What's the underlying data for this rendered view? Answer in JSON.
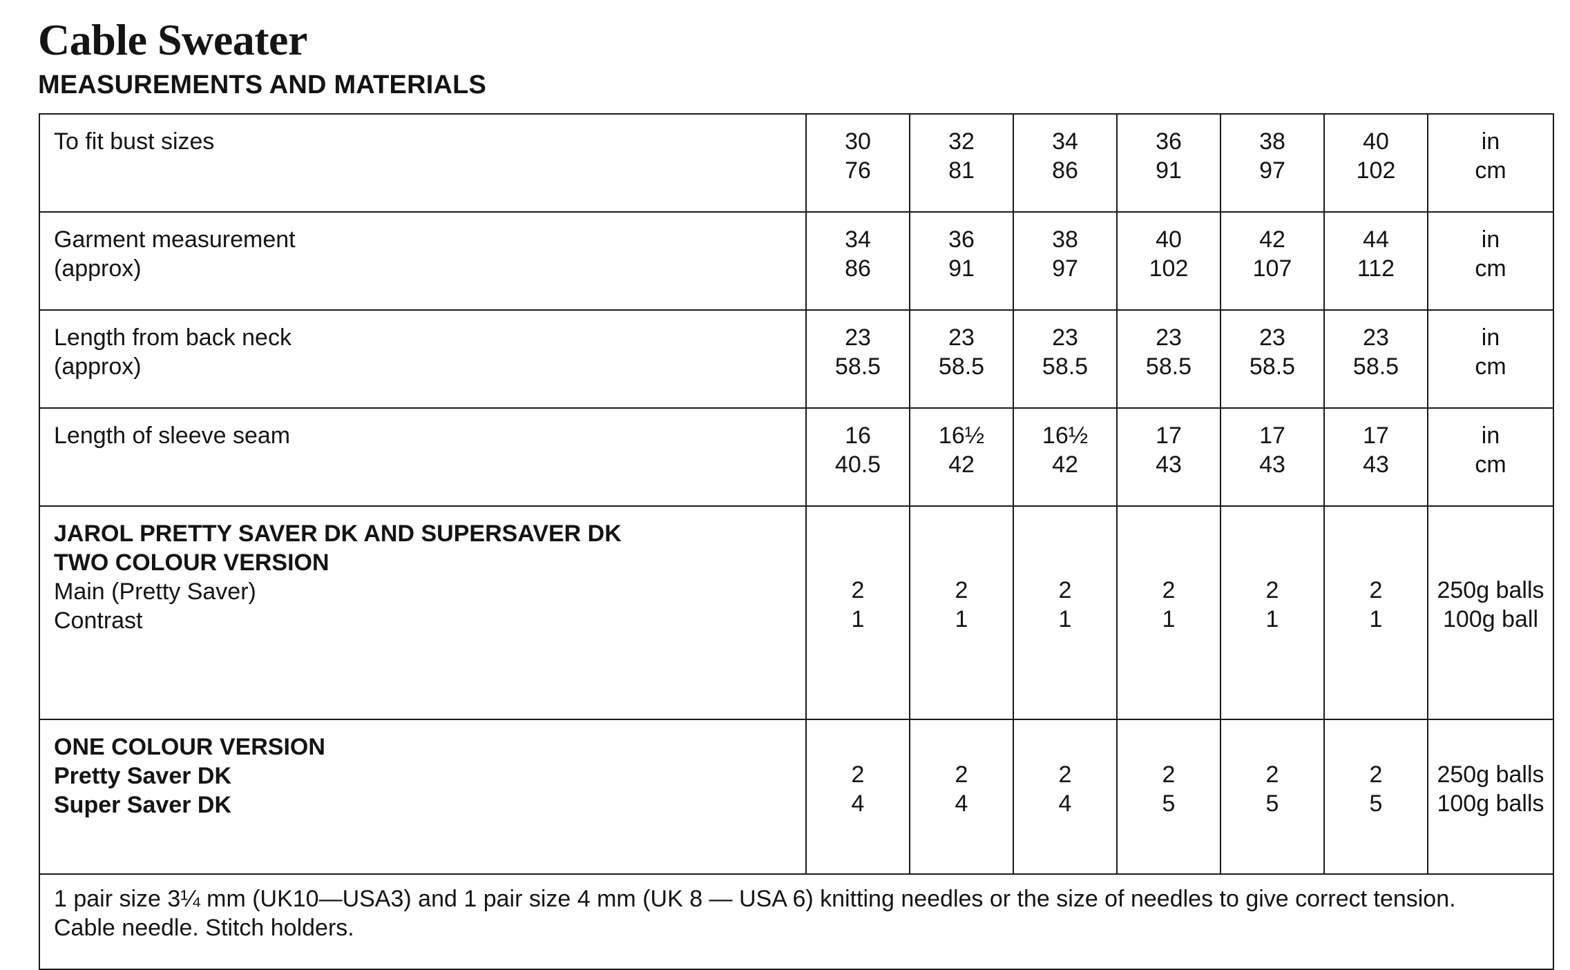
{
  "title": "Cable Sweater",
  "subtitle": "MEASUREMENTS AND MATERIALS",
  "rows": {
    "bust": {
      "label": "To fit bust sizes",
      "values": [
        [
          "30",
          "76"
        ],
        [
          "32",
          "81"
        ],
        [
          "34",
          "86"
        ],
        [
          "36",
          "91"
        ],
        [
          "38",
          "97"
        ],
        [
          "40",
          "102"
        ]
      ],
      "units": [
        "in",
        "cm"
      ]
    },
    "garment": {
      "label": [
        "Garment measurement",
        "(approx)"
      ],
      "values": [
        [
          "34",
          "86"
        ],
        [
          "36",
          "91"
        ],
        [
          "38",
          "97"
        ],
        [
          "40",
          "102"
        ],
        [
          "42",
          "107"
        ],
        [
          "44",
          "112"
        ]
      ],
      "units": [
        "in",
        "cm"
      ]
    },
    "length": {
      "label": [
        "Length from back neck",
        "(approx)"
      ],
      "values": [
        [
          "23",
          "58.5"
        ],
        [
          "23",
          "58.5"
        ],
        [
          "23",
          "58.5"
        ],
        [
          "23",
          "58.5"
        ],
        [
          "23",
          "58.5"
        ],
        [
          "23",
          "58.5"
        ]
      ],
      "units": [
        "in",
        "cm"
      ]
    },
    "sleeve": {
      "label": "Length of sleeve seam",
      "values": [
        [
          "16",
          "40.5"
        ],
        [
          "16½",
          "42"
        ],
        [
          "16½",
          "42"
        ],
        [
          "17",
          "43"
        ],
        [
          "17",
          "43"
        ],
        [
          "17",
          "43"
        ]
      ],
      "units": [
        "in",
        "cm"
      ]
    },
    "two_colour": {
      "heading": [
        "JAROL PRETTY SAVER DK AND SUPERSAVER DK",
        "TWO COLOUR VERSION"
      ],
      "label": [
        "Main (Pretty Saver)",
        "Contrast"
      ],
      "values": [
        [
          "2",
          "1"
        ],
        [
          "2",
          "1"
        ],
        [
          "2",
          "1"
        ],
        [
          "2",
          "1"
        ],
        [
          "2",
          "1"
        ],
        [
          "2",
          "1"
        ]
      ],
      "units": [
        "250g balls",
        "100g ball"
      ]
    },
    "one_colour": {
      "heading": "ONE COLOUR VERSION",
      "label": [
        "Pretty Saver DK",
        "Super Saver DK"
      ],
      "values": [
        [
          "2",
          "4"
        ],
        [
          "2",
          "4"
        ],
        [
          "2",
          "4"
        ],
        [
          "2",
          "5"
        ],
        [
          "2",
          "5"
        ],
        [
          "2",
          "5"
        ]
      ],
      "units": [
        "250g balls",
        "100g balls"
      ]
    }
  },
  "needles": [
    "1 pair size 3¼ mm (UK10—USA3) and 1 pair size 4 mm (UK 8 — USA 6) knitting needles or the size of needles to give correct tension.",
    "Cable needle. Stitch holders."
  ]
}
